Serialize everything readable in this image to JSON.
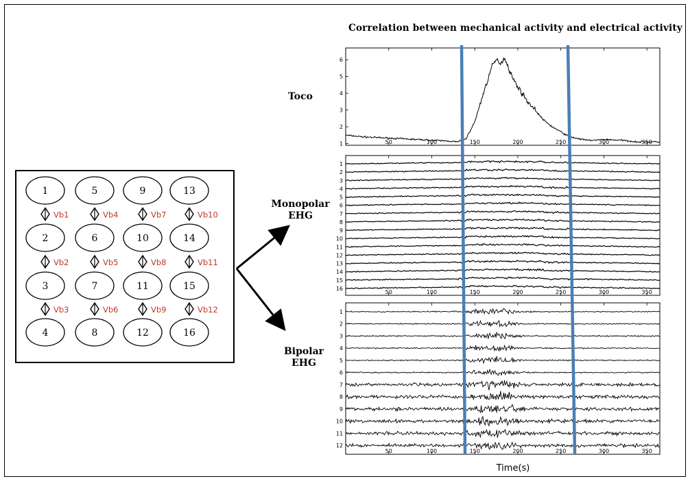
{
  "figure": {
    "title": "Correlation between mechanical activity and electrical activity",
    "labels": {
      "toco": "Toco",
      "monopolar": [
        "Monopolar",
        "EHG"
      ],
      "bipolar": [
        "Bipolar",
        "EHG"
      ]
    },
    "xlabel": "Time(s)"
  },
  "electrode_grid": {
    "electrodes": [
      [
        "1",
        "5",
        "9",
        "13"
      ],
      [
        "2",
        "6",
        "10",
        "14"
      ],
      [
        "3",
        "7",
        "11",
        "15"
      ],
      [
        "4",
        "8",
        "12",
        "16"
      ]
    ],
    "bipolar_labels": [
      [
        "Vb1",
        "Vb4",
        "Vb7",
        "Vb10"
      ],
      [
        "Vb2",
        "Vb5",
        "Vb8",
        "Vb11"
      ],
      [
        "Vb3",
        "Vb6",
        "Vb9",
        "Vb12"
      ]
    ],
    "bipolar_label_color": "#c0392b"
  },
  "chart_data": [
    {
      "type": "line",
      "panel": "Toco",
      "xlim": [
        0,
        365
      ],
      "xticks": [
        50,
        100,
        150,
        200,
        250,
        300,
        350
      ],
      "yticks": [
        "1",
        "2",
        "3",
        "4",
        "5",
        "6"
      ],
      "x": [
        0,
        20,
        40,
        60,
        80,
        100,
        120,
        130,
        140,
        150,
        160,
        170,
        175,
        180,
        185,
        190,
        195,
        200,
        210,
        220,
        230,
        240,
        250,
        260,
        270,
        280,
        290,
        300,
        320,
        340,
        365
      ],
      "y": [
        1.5,
        1.4,
        1.35,
        1.3,
        1.25,
        1.2,
        1.15,
        1.1,
        1.3,
        2.3,
        4.0,
        5.6,
        6.0,
        5.8,
        6.1,
        5.4,
        4.8,
        4.4,
        3.6,
        3.0,
        2.4,
        2.0,
        1.7,
        1.4,
        1.3,
        1.2,
        1.2,
        1.25,
        1.2,
        1.1,
        1.1
      ]
    },
    {
      "type": "line",
      "panel": "Monopolar EHG",
      "xlim": [
        0,
        365
      ],
      "xticks": [
        50,
        100,
        150,
        200,
        250,
        300,
        350
      ],
      "channels": [
        "1",
        "2",
        "3",
        "4",
        "5",
        "6",
        "7",
        "8",
        "9",
        "10",
        "11",
        "12",
        "13",
        "14",
        "15",
        "16"
      ]
    },
    {
      "type": "line",
      "panel": "Bipolar EHG",
      "xlim": [
        0,
        365
      ],
      "xticks": [
        50,
        100,
        150,
        200,
        250,
        300,
        350
      ],
      "channels": [
        "1",
        "2",
        "3",
        "4",
        "5",
        "6",
        "7",
        "8",
        "9",
        "10",
        "11",
        "12"
      ],
      "xlabel": "Time(s)"
    }
  ],
  "markers": {
    "color": "#4a7fb5"
  }
}
